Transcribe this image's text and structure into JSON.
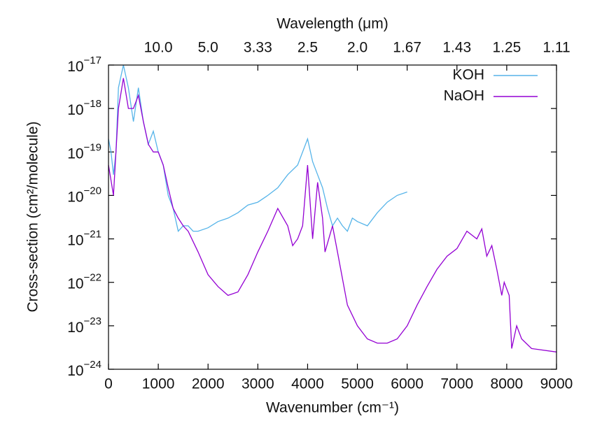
{
  "chart_data": {
    "type": "line",
    "x2label": "Wavelength (μm)",
    "xlabel": "Wavenumber (cm⁻¹)",
    "ylabel": "Cross-section (cm²/molecule)",
    "log_y": true,
    "legend": "top-right",
    "xlim": [
      0,
      9000
    ],
    "xticks": [
      0,
      1000,
      2000,
      3000,
      4000,
      5000,
      6000,
      7000,
      8000,
      9000
    ],
    "x2ticks": [
      {
        "value": 1000,
        "label": "10.0"
      },
      {
        "value": 2000,
        "label": "5.0"
      },
      {
        "value": 3000,
        "label": "3.33"
      },
      {
        "value": 4000,
        "label": "2.5"
      },
      {
        "value": 5000,
        "label": "2.0"
      },
      {
        "value": 6000,
        "label": "1.67"
      },
      {
        "value": 7000,
        "label": "1.43"
      },
      {
        "value": 8000,
        "label": "1.25"
      },
      {
        "value": 9000,
        "label": "1.11"
      }
    ],
    "ylim": [
      1e-24,
      1e-17
    ],
    "yticks": [
      {
        "value": 1e-24,
        "label": "10−24"
      },
      {
        "value": 1e-23,
        "label": "10−23"
      },
      {
        "value": 1e-22,
        "label": "10−22"
      },
      {
        "value": 1e-21,
        "label": "10−21"
      },
      {
        "value": 1e-20,
        "label": "10−20"
      },
      {
        "value": 1e-19,
        "label": "10−19"
      },
      {
        "value": 1e-18,
        "label": "10−18"
      },
      {
        "value": 1e-17,
        "label": "10−17"
      }
    ],
    "series": [
      {
        "name": "KOH",
        "color": "#56b4e9",
        "x": [
          0,
          50,
          100,
          150,
          200,
          300,
          400,
          500,
          600,
          700,
          800,
          900,
          1000,
          1100,
          1200,
          1300,
          1400,
          1500,
          1600,
          1700,
          1800,
          2000,
          2200,
          2400,
          2600,
          2800,
          3000,
          3200,
          3400,
          3600,
          3800,
          4000,
          4100,
          4200,
          4300,
          4400,
          4500,
          4600,
          4700,
          4800,
          4900,
          5000,
          5200,
          5400,
          5600,
          5800,
          6000
        ],
        "values": [
          2e-19,
          1e-19,
          3e-20,
          1e-19,
          3e-18,
          1e-17,
          3e-18,
          5e-19,
          3e-18,
          5e-19,
          1.5e-19,
          3e-19,
          1e-19,
          5e-20,
          1e-20,
          5e-21,
          1.5e-21,
          2e-21,
          2e-21,
          1.5e-21,
          1.5e-21,
          1.8e-21,
          2.5e-21,
          3e-21,
          4e-21,
          6e-21,
          7e-21,
          1e-20,
          1.5e-20,
          3e-20,
          5e-20,
          2e-19,
          6e-20,
          3e-20,
          1.5e-20,
          5e-21,
          2e-21,
          3e-21,
          2e-21,
          1.5e-21,
          3e-21,
          2.5e-21,
          2e-21,
          4e-21,
          7e-21,
          1e-20,
          1.2e-20
        ]
      },
      {
        "name": "NaOH",
        "color": "#9400d3",
        "x": [
          0,
          100,
          200,
          300,
          400,
          500,
          600,
          700,
          800,
          900,
          1000,
          1100,
          1200,
          1300,
          1400,
          1500,
          1600,
          1800,
          2000,
          2200,
          2400,
          2600,
          2800,
          3000,
          3200,
          3400,
          3600,
          3700,
          3800,
          3900,
          4000,
          4100,
          4200,
          4300,
          4350,
          4500,
          4600,
          4800,
          5000,
          5200,
          5400,
          5600,
          5800,
          6000,
          6200,
          6400,
          6600,
          6800,
          7000,
          7200,
          7400,
          7500,
          7600,
          7700,
          7800,
          7900,
          7950,
          8050,
          8100,
          8200,
          8300,
          8500,
          9000
        ],
        "values": [
          5e-20,
          1e-20,
          1e-18,
          5e-18,
          1e-18,
          1e-18,
          2e-18,
          5e-19,
          1.5e-19,
          1e-19,
          1e-19,
          5e-20,
          1.5e-20,
          5e-21,
          3e-21,
          2e-21,
          1.5e-21,
          5e-22,
          1.5e-22,
          8e-23,
          5e-23,
          6e-23,
          1.5e-22,
          5e-22,
          1.5e-21,
          5e-21,
          2e-21,
          7e-22,
          1e-21,
          2e-21,
          5e-20,
          1e-21,
          2e-20,
          3e-21,
          5e-22,
          2e-21,
          5e-22,
          3e-23,
          1e-23,
          5e-24,
          4e-24,
          4e-24,
          5e-24,
          1e-23,
          3e-23,
          8e-23,
          2e-22,
          4e-22,
          6e-22,
          1.5e-21,
          1e-21,
          1.7e-21,
          4e-22,
          7e-22,
          2e-22,
          5e-23,
          1e-22,
          5e-23,
          3e-24,
          1e-23,
          5e-24,
          3e-24,
          2.5e-24
        ]
      }
    ]
  }
}
